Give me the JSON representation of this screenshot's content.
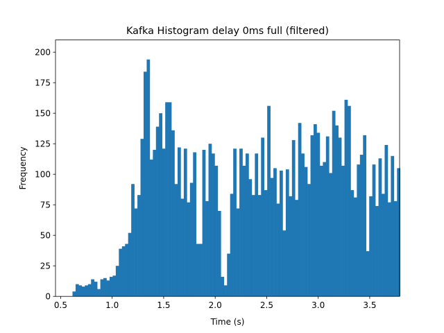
{
  "chart_data": {
    "type": "bar",
    "title": "Kafka Histogram delay 0ms full (filtered)",
    "xlabel": "Time (s)",
    "ylabel": "Frequency",
    "xlim": [
      0.45,
      3.79
    ],
    "ylim": [
      0,
      210
    ],
    "xticks": [
      0.5,
      1.0,
      1.5,
      2.0,
      2.5,
      3.0,
      3.5
    ],
    "xtick_labels": [
      "0.5",
      "1.0",
      "1.5",
      "2.0",
      "2.5",
      "3.0",
      "3.5"
    ],
    "yticks": [
      0,
      25,
      50,
      75,
      100,
      125,
      150,
      175,
      200
    ],
    "ytick_labels": [
      "0",
      "25",
      "50",
      "75",
      "100",
      "125",
      "150",
      "175",
      "200"
    ],
    "grid": false,
    "color": "#1f77b4",
    "bin_start": 0.615,
    "bin_width": 0.03,
    "counts": [
      4,
      10,
      9,
      8,
      9,
      10,
      14,
      12,
      6,
      14,
      15,
      13,
      16,
      17,
      25,
      39,
      41,
      43,
      52,
      92,
      72,
      83,
      129,
      184,
      194,
      112,
      120,
      139,
      150,
      121,
      159,
      159,
      136,
      92,
      122,
      80,
      121,
      77,
      93,
      118,
      43,
      43,
      120,
      78,
      125,
      117,
      107,
      70,
      16,
      9,
      35,
      84,
      121,
      72,
      121,
      107,
      117,
      96,
      83,
      117,
      83,
      130,
      87,
      156,
      97,
      105,
      76,
      103,
      54,
      104,
      82,
      128,
      79,
      142,
      117,
      106,
      92,
      132,
      141,
      134,
      107,
      110,
      131,
      101,
      152,
      140,
      130,
      107,
      161,
      156,
      87,
      81,
      108,
      116,
      132,
      37,
      82,
      108,
      74,
      113,
      84,
      124,
      77,
      115,
      78,
      105
    ]
  }
}
